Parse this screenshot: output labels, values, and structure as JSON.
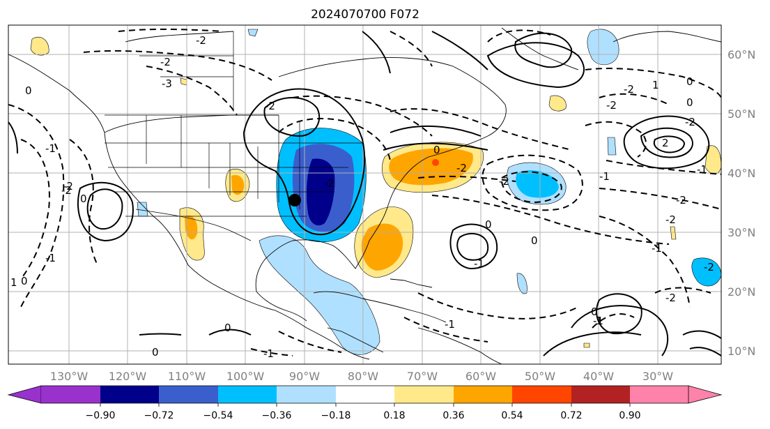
{
  "title": "2024070700 F072",
  "map": {
    "lon_labels": [
      "130°W",
      "120°W",
      "110°W",
      "100°W",
      "90°W",
      "80°W",
      "70°W",
      "60°W",
      "50°W",
      "40°W",
      "30°W"
    ],
    "lat_labels": [
      "60°N",
      "50°N",
      "40°N",
      "30°N",
      "20°N",
      "10°N"
    ],
    "contour_labels": [
      "-2",
      "-3",
      "-2",
      "0",
      "-1",
      "-2",
      "0",
      "-1",
      "-2",
      "-2",
      "0",
      "-2",
      "-1",
      "-1",
      "-2",
      "0",
      "-1",
      "0",
      "-1",
      "0",
      "0",
      "-2",
      "-2",
      "1",
      "-2",
      "-2",
      "-1",
      "0",
      "-2",
      "-1",
      "2",
      "-2",
      "-2",
      "1",
      "0",
      "1",
      "0",
      "-2",
      "0",
      "-1"
    ],
    "point_marker": {
      "lon": -91.5,
      "lat": 35.5
    },
    "fill_colors": {
      "neg_090": "#9932cc",
      "neg_072": "#00008b",
      "neg_054": "#3a5fcd",
      "neg_036": "#00bfff",
      "neg_018": "#b0e0ff",
      "zero": "#ffffff",
      "pos_018": "#ffe98a",
      "pos_036": "#ffa500",
      "pos_054": "#ff4500",
      "pos_072": "#b22222",
      "pos_090": "#ff82ab"
    }
  },
  "colorbar": {
    "labels": [
      "−0.90",
      "−0.72",
      "−0.54",
      "−0.36",
      "−0.18",
      "0.18",
      "0.36",
      "0.54",
      "0.72",
      "0.90"
    ],
    "colors": [
      "#9932cc",
      "#00008b",
      "#3a5fcd",
      "#00bfff",
      "#b0e0ff",
      "#ffffff",
      "#ffe98a",
      "#ffa500",
      "#ff4500",
      "#b22222",
      "#ff82ab"
    ]
  }
}
